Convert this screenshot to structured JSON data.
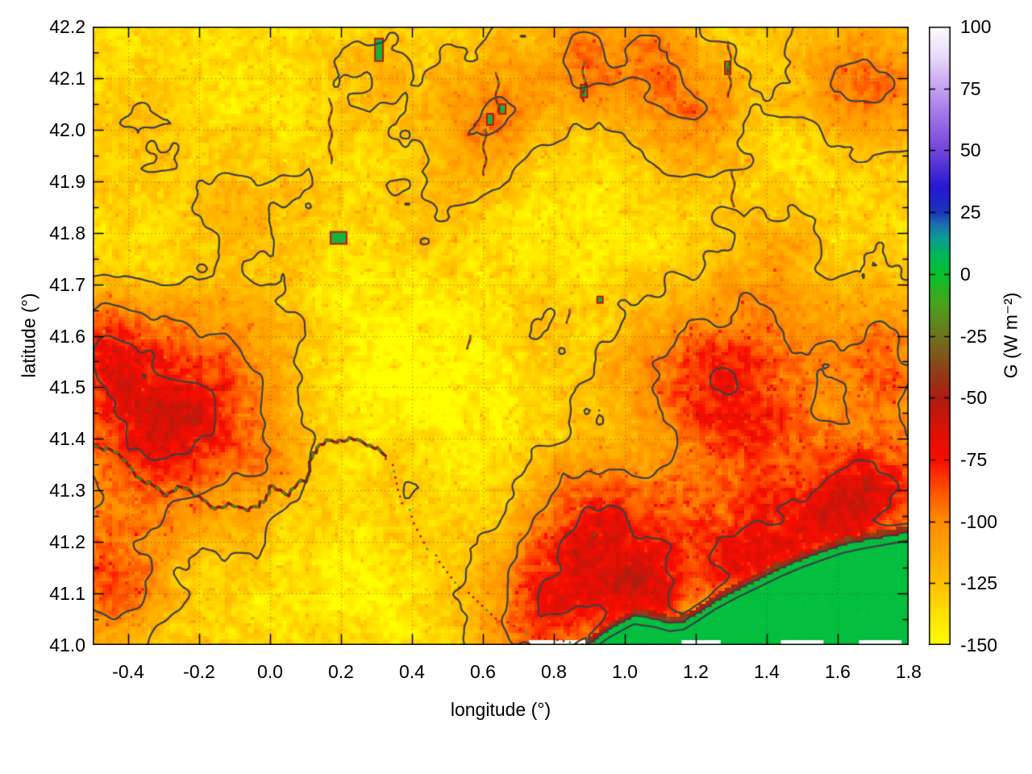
{
  "chart_data": {
    "type": "heatmap",
    "title": "",
    "xlabel": "longitude (°)",
    "ylabel": "latitude (°)",
    "xlim": [
      -0.5,
      1.8
    ],
    "ylim": [
      41.0,
      42.2
    ],
    "x_ticks": {
      "values": [
        -0.4,
        -0.2,
        0.0,
        0.2,
        0.4,
        0.6,
        0.8,
        1.0,
        1.2,
        1.4,
        1.6,
        1.8
      ],
      "labels": [
        "-0.4",
        "-0.2",
        "0.0",
        "0.2",
        "0.4",
        "0.6",
        "0.8",
        "1.0",
        "1.2",
        "1.4",
        "1.6",
        "1.8"
      ],
      "minor_step": 0.1
    },
    "y_ticks": {
      "values": [
        41.0,
        41.1,
        41.2,
        41.3,
        41.4,
        41.5,
        41.6,
        41.7,
        41.8,
        41.9,
        42.0,
        42.1,
        42.2
      ],
      "labels": [
        "41.0",
        "41.1",
        "41.2",
        "41.3",
        "41.4",
        "41.5",
        "41.6",
        "41.7",
        "41.8",
        "41.9",
        "42.0",
        "42.1",
        "42.2"
      ],
      "minor_step": 0.05
    },
    "grid": "dotted",
    "legend_position": "right-colorbar",
    "colorbar": {
      "label": "G (W m⁻²)",
      "min": -150,
      "max": 100,
      "tick_values": [
        100,
        75,
        50,
        25,
        0,
        -25,
        -50,
        -75,
        -100,
        -125,
        -150
      ],
      "tick_labels": [
        "100",
        "75",
        "50",
        "25",
        "0",
        "-25",
        "-50",
        "-75",
        "-100",
        "-125",
        "-150"
      ],
      "palette": [
        [
          -150,
          "#ffff00"
        ],
        [
          -138,
          "#ffe300"
        ],
        [
          -125,
          "#ffc100"
        ],
        [
          -112,
          "#ffa500"
        ],
        [
          -100,
          "#ff8c00"
        ],
        [
          -88,
          "#ff5500"
        ],
        [
          -75,
          "#f80d00"
        ],
        [
          -62,
          "#d91107"
        ],
        [
          -50,
          "#ae1d10"
        ],
        [
          -38,
          "#8c4318"
        ],
        [
          -25,
          "#6e741f"
        ],
        [
          -12,
          "#4aa21e"
        ],
        [
          0,
          "#06c12c"
        ],
        [
          8,
          "#00b75a"
        ],
        [
          15,
          "#0d9a95"
        ],
        [
          20,
          "#1a6fae"
        ],
        [
          25,
          "#1b35bb"
        ],
        [
          35,
          "#2617d2"
        ],
        [
          50,
          "#7145da"
        ],
        [
          62,
          "#9a6ce6"
        ],
        [
          75,
          "#c49ff0"
        ],
        [
          88,
          "#e7daf9"
        ],
        [
          100,
          "#fdfcff"
        ]
      ]
    },
    "field": {
      "base": -134,
      "contour_levels": [
        -125,
        -100,
        -75,
        -50,
        -25
      ],
      "contour_color": "#3a4045",
      "blobs": [
        [
          -0.28,
          41.44,
          0.2,
          0.14,
          72
        ],
        [
          -0.48,
          41.59,
          0.09,
          0.07,
          40
        ],
        [
          -0.46,
          41.12,
          0.11,
          0.09,
          45
        ],
        [
          1.3,
          41.49,
          0.21,
          0.15,
          60
        ],
        [
          0.92,
          41.23,
          0.15,
          0.1,
          55
        ],
        [
          0.78,
          41.06,
          0.13,
          0.09,
          48
        ],
        [
          1.05,
          41.09,
          0.1,
          0.07,
          45
        ],
        [
          1.32,
          41.16,
          0.13,
          0.08,
          50
        ],
        [
          1.57,
          41.24,
          0.13,
          0.08,
          52
        ],
        [
          1.75,
          41.31,
          0.1,
          0.07,
          50
        ],
        [
          1.74,
          41.55,
          0.1,
          0.09,
          35
        ],
        [
          0.62,
          42.03,
          0.1,
          0.08,
          36
        ],
        [
          0.88,
          42.13,
          0.1,
          0.07,
          40
        ],
        [
          1.18,
          42.03,
          0.12,
          0.09,
          33
        ],
        [
          1.68,
          42.09,
          0.13,
          0.09,
          42
        ],
        [
          1.1,
          42.16,
          0.07,
          0.06,
          25
        ],
        [
          -0.33,
          42.0,
          0.14,
          0.09,
          14
        ],
        [
          -0.05,
          41.87,
          0.11,
          0.08,
          13
        ],
        [
          0.3,
          42.1,
          0.09,
          0.07,
          13
        ],
        [
          -0.02,
          41.63,
          0.1,
          0.08,
          13
        ],
        [
          0.5,
          41.84,
          0.12,
          0.09,
          15
        ],
        [
          0.75,
          41.62,
          0.09,
          0.07,
          12
        ],
        [
          1.45,
          41.79,
          0.09,
          0.07,
          12
        ],
        [
          0.35,
          41.28,
          0.1,
          0.07,
          15
        ],
        [
          0.02,
          41.33,
          0.08,
          0.06,
          12
        ],
        [
          0.45,
          41.52,
          0.26,
          0.18,
          -14
        ],
        [
          0.22,
          41.11,
          0.16,
          0.1,
          -10
        ],
        [
          -0.15,
          42.1,
          0.18,
          0.1,
          -10
        ],
        [
          1.0,
          41.77,
          0.14,
          0.1,
          -11
        ],
        [
          1.05,
          41.4,
          0.09,
          0.06,
          -12
        ],
        [
          1.55,
          41.95,
          0.12,
          0.08,
          -8
        ],
        [
          0.65,
          41.87,
          0.1,
          0.07,
          -8
        ],
        [
          -0.35,
          41.75,
          0.12,
          0.09,
          -8
        ]
      ]
    },
    "sea": {
      "color": "#04be3e",
      "value": 0,
      "coast": [
        [
          0.9,
          41.0
        ],
        [
          0.96,
          41.03
        ],
        [
          1.03,
          41.056
        ],
        [
          1.09,
          41.05
        ],
        [
          1.13,
          41.042
        ],
        [
          1.17,
          41.045
        ],
        [
          1.21,
          41.062
        ],
        [
          1.26,
          41.085
        ],
        [
          1.32,
          41.107
        ],
        [
          1.38,
          41.127
        ],
        [
          1.44,
          41.147
        ],
        [
          1.5,
          41.165
        ],
        [
          1.56,
          41.18
        ],
        [
          1.62,
          41.194
        ],
        [
          1.68,
          41.203
        ],
        [
          1.74,
          41.21
        ],
        [
          1.8,
          41.218
        ]
      ],
      "bottom_white_gaps": [
        [
          0.73,
          0.895
        ],
        [
          1.16,
          1.27
        ],
        [
          1.44,
          1.56
        ],
        [
          1.66,
          1.78
        ]
      ]
    },
    "river": {
      "channel_color": "#8c1a0c",
      "water_color": "#18b238",
      "path": [
        [
          -0.5,
          41.39
        ],
        [
          -0.42,
          41.368
        ],
        [
          -0.38,
          41.33
        ],
        [
          -0.3,
          41.295
        ],
        [
          -0.235,
          41.305
        ],
        [
          -0.17,
          41.27
        ],
        [
          -0.09,
          41.268
        ],
        [
          -0.03,
          41.266
        ],
        [
          0.0,
          41.305
        ],
        [
          0.05,
          41.295
        ],
        [
          0.1,
          41.32
        ],
        [
          0.13,
          41.386
        ],
        [
          0.205,
          41.4
        ],
        [
          0.27,
          41.393
        ],
        [
          0.325,
          41.368
        ]
      ],
      "delta_trail": [
        [
          0.33,
          41.36
        ],
        [
          0.36,
          41.3
        ],
        [
          0.4,
          41.235
        ],
        [
          0.47,
          41.16
        ],
        [
          0.55,
          41.1
        ],
        [
          0.64,
          41.05
        ],
        [
          0.74,
          41.015
        ],
        [
          0.88,
          41.0
        ]
      ]
    },
    "reservoirs": [
      [
        0.193,
        41.79,
        18,
        13
      ],
      [
        0.307,
        42.155,
        8,
        26
      ],
      [
        0.62,
        42.02,
        6,
        12
      ],
      [
        0.655,
        42.04,
        6,
        10
      ],
      [
        0.885,
        42.075,
        6,
        14
      ],
      [
        0.93,
        41.67,
        5,
        6
      ],
      [
        1.29,
        42.12,
        5,
        14
      ]
    ],
    "streams": [
      [
        0.17,
        42.06,
        41.93
      ],
      [
        0.605,
        42.0,
        41.91
      ],
      [
        0.64,
        42.11,
        42.03
      ],
      [
        0.885,
        42.13,
        42.05
      ],
      [
        1.295,
        42.17,
        42.06
      ],
      [
        1.305,
        41.92,
        41.85
      ],
      [
        0.56,
        41.6,
        41.57
      ],
      [
        0.84,
        41.65,
        41.62
      ]
    ]
  }
}
